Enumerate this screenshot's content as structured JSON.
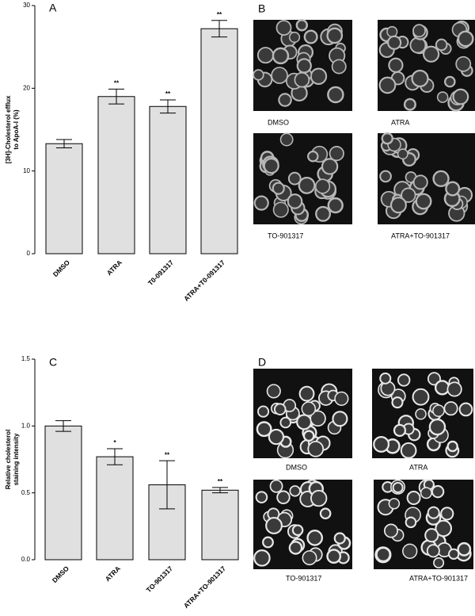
{
  "chart_data": [
    {
      "type": "bar",
      "panel": "A",
      "ylabel": [
        "[3H]-Cholesterol efflux",
        "to ApoA-I (%)"
      ],
      "categories": [
        "DMSO",
        "ATRA",
        "T0-091317",
        "ATRA+T0-091317"
      ],
      "values": [
        13.3,
        19.0,
        17.8,
        27.2
      ],
      "errors": [
        0.5,
        0.9,
        0.8,
        1.0
      ],
      "significance": [
        null,
        "**",
        "**",
        "**"
      ],
      "color": "#e0e0e0",
      "ylim": [
        0,
        30
      ],
      "yticks": [
        0,
        10,
        20,
        30
      ]
    },
    {
      "type": "bar",
      "panel": "C",
      "ylabel": [
        "Relative cholesterol",
        "staining intensity"
      ],
      "categories": [
        "DMSO",
        "ATRA",
        "TO-901317",
        "ATRA+TO-901317"
      ],
      "values": [
        1.0,
        0.77,
        0.56,
        0.52
      ],
      "errors": [
        0.04,
        0.06,
        0.18,
        0.02
      ],
      "significance": [
        null,
        "*",
        "**",
        "**"
      ],
      "color": "#e0e0e0",
      "ylim": [
        0,
        1.5
      ],
      "yticks": [
        {
          "value": 0,
          "label": "0.0"
        },
        {
          "value": 0.5,
          "label": "0.5"
        },
        {
          "value": 1,
          "label": "1.0"
        },
        {
          "value": 1.5,
          "label": "1.5"
        }
      ]
    }
  ],
  "image_panels": [
    {
      "panel": "B",
      "captions": [
        "DMSO",
        "ATRA",
        "TO-901317",
        "ATRA+TO-901317"
      ]
    },
    {
      "panel": "D",
      "captions": [
        "DMSO",
        "ATRA",
        "TO-901317",
        "ATRA+TO-901317"
      ]
    }
  ]
}
